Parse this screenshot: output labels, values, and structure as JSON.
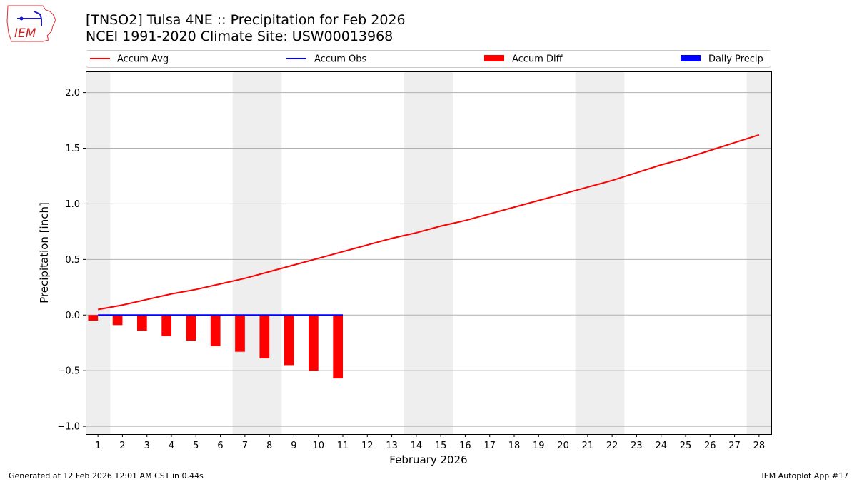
{
  "header": {
    "title": "[TNSO2] Tulsa 4NE :: Precipitation for Feb 2026",
    "subtitle": "NCEI 1991-2020 Climate Site: USW00013968",
    "logo_text": "IEM"
  },
  "footer": {
    "generated": "Generated at 12 Feb 2026 12:01 AM CST in 0.44s",
    "app": "IEM Autoplot App #17"
  },
  "chart_data": {
    "type": "bar",
    "xlabel": "February 2026",
    "ylabel": "Precipitation [inch]",
    "xlim": [
      0.5,
      28.5
    ],
    "ylim": [
      -1.07,
      2.19
    ],
    "yticks": [
      -1.0,
      -0.5,
      0.0,
      0.5,
      1.0,
      1.5,
      2.0
    ],
    "ytick_labels": [
      "−1.0",
      "−0.5",
      "0.0",
      "0.5",
      "1.0",
      "1.5",
      "2.0"
    ],
    "xticks": [
      1,
      2,
      3,
      4,
      5,
      6,
      7,
      8,
      9,
      10,
      11,
      12,
      13,
      14,
      15,
      16,
      17,
      18,
      19,
      20,
      21,
      22,
      23,
      24,
      25,
      26,
      27,
      28
    ],
    "grid": "horizontal",
    "legend_placement": "top (above plot)",
    "weekend_shading": [
      [
        0.5,
        1.5
      ],
      [
        6.5,
        8.5
      ],
      [
        13.5,
        15.5
      ],
      [
        20.5,
        22.5
      ],
      [
        27.5,
        28.5
      ]
    ],
    "colors": {
      "accum_avg": "#ff0000",
      "accum_obs": "#0000ff",
      "accum_diff": "#ff0000",
      "daily_precip": "#0000ff",
      "weekend": "#eeeeee"
    },
    "series": [
      {
        "name": "Accum Avg",
        "kind": "line",
        "x": [
          1,
          2,
          3,
          4,
          5,
          6,
          7,
          8,
          9,
          10,
          11,
          12,
          13,
          14,
          15,
          16,
          17,
          18,
          19,
          20,
          21,
          22,
          23,
          24,
          25,
          26,
          27,
          28
        ],
        "values": [
          0.05,
          0.09,
          0.14,
          0.19,
          0.23,
          0.28,
          0.33,
          0.39,
          0.45,
          0.51,
          0.57,
          0.63,
          0.69,
          0.74,
          0.8,
          0.85,
          0.91,
          0.97,
          1.03,
          1.09,
          1.15,
          1.21,
          1.28,
          1.35,
          1.41,
          1.48,
          1.55,
          1.62
        ]
      },
      {
        "name": "Accum Obs",
        "kind": "line",
        "x": [
          1,
          2,
          3,
          4,
          5,
          6,
          7,
          8,
          9,
          10,
          11
        ],
        "values": [
          0,
          0,
          0,
          0,
          0,
          0,
          0,
          0,
          0,
          0,
          0
        ]
      },
      {
        "name": "Accum Diff",
        "kind": "bar",
        "x": [
          1,
          2,
          3,
          4,
          5,
          6,
          7,
          8,
          9,
          10,
          11
        ],
        "values": [
          -0.05,
          -0.09,
          -0.14,
          -0.19,
          -0.23,
          -0.28,
          -0.33,
          -0.39,
          -0.45,
          -0.5,
          -0.57
        ]
      },
      {
        "name": "Daily Precip",
        "kind": "bar",
        "x": [
          1,
          2,
          3,
          4,
          5,
          6,
          7,
          8,
          9,
          10,
          11
        ],
        "values": [
          0,
          0,
          0,
          0,
          0,
          0,
          0,
          0,
          0,
          0,
          0
        ]
      }
    ]
  }
}
